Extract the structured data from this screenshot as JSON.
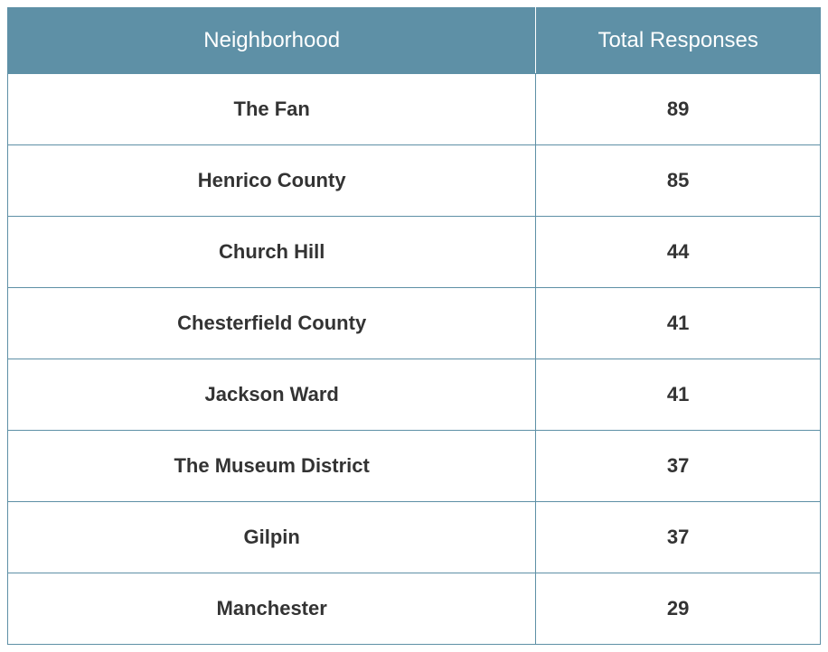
{
  "table": {
    "type": "table",
    "header_bg_color": "#5e90a6",
    "header_text_color": "#ffffff",
    "border_color": "#5e90a6",
    "row_bg_color": "#ffffff",
    "row_text_color": "#333333",
    "header_fontsize": 24,
    "header_fontweight": 400,
    "cell_fontsize": 22,
    "cell_fontweight": 700,
    "columns": [
      {
        "label": "Neighborhood",
        "width_pct": 65,
        "align": "center"
      },
      {
        "label": "Total Responses",
        "width_pct": 35,
        "align": "center"
      }
    ],
    "rows": [
      {
        "neighborhood": "The Fan",
        "responses": "89"
      },
      {
        "neighborhood": "Henrico County",
        "responses": "85"
      },
      {
        "neighborhood": "Church Hill",
        "responses": "44"
      },
      {
        "neighborhood": "Chesterfield County",
        "responses": "41"
      },
      {
        "neighborhood": "Jackson Ward",
        "responses": "41"
      },
      {
        "neighborhood": "The Museum District",
        "responses": "37"
      },
      {
        "neighborhood": "Gilpin",
        "responses": "37"
      },
      {
        "neighborhood": "Manchester",
        "responses": "29"
      }
    ]
  }
}
